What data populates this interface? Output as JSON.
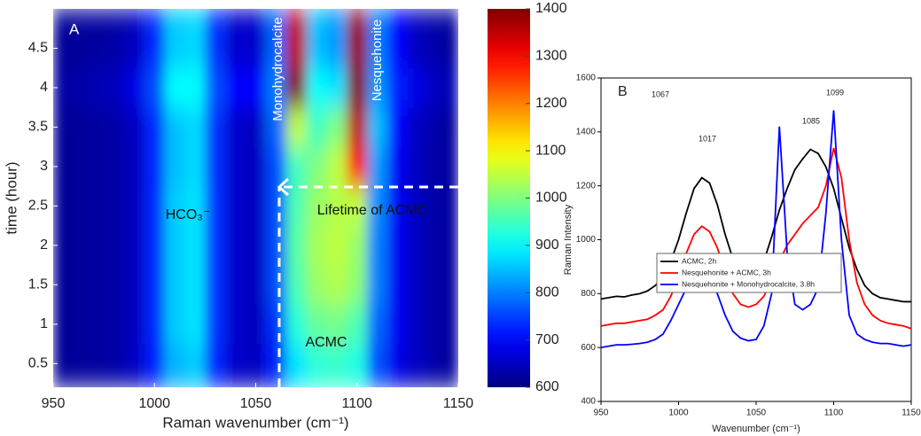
{
  "chart_data": [
    {
      "type": "heatmap",
      "panel_label": "A",
      "colormap": "jet",
      "x": [
        950,
        960,
        970,
        980,
        990,
        1000,
        1010,
        1020,
        1030,
        1040,
        1050,
        1060,
        1070,
        1080,
        1090,
        1100,
        1110,
        1120,
        1130,
        1140,
        1150
      ],
      "y": [
        0.5,
        1,
        1.5,
        2,
        2.5,
        3,
        3.5,
        4,
        4.5
      ],
      "values": [
        [
          620,
          620,
          625,
          630,
          650,
          720,
          840,
          860,
          730,
          660,
          650,
          720,
          880,
          930,
          940,
          920,
          760,
          680,
          650,
          630,
          620
        ],
        [
          620,
          620,
          625,
          630,
          650,
          730,
          860,
          880,
          740,
          660,
          650,
          740,
          930,
          980,
          990,
          960,
          780,
          690,
          650,
          630,
          620
        ],
        [
          620,
          620,
          625,
          630,
          650,
          730,
          860,
          880,
          740,
          660,
          650,
          760,
          960,
          1020,
          1040,
          1010,
          800,
          690,
          650,
          630,
          620
        ],
        [
          620,
          620,
          625,
          630,
          650,
          730,
          860,
          880,
          740,
          660,
          650,
          760,
          970,
          1030,
          1050,
          1020,
          800,
          690,
          650,
          630,
          620
        ],
        [
          620,
          620,
          625,
          630,
          650,
          730,
          860,
          880,
          740,
          660,
          650,
          760,
          960,
          1020,
          1040,
          1050,
          810,
          690,
          650,
          630,
          620
        ],
        [
          620,
          620,
          625,
          630,
          650,
          730,
          850,
          870,
          740,
          660,
          650,
          760,
          950,
          1000,
          1050,
          1300,
          820,
          690,
          650,
          630,
          620
        ],
        [
          620,
          620,
          625,
          630,
          650,
          730,
          850,
          870,
          740,
          660,
          650,
          780,
          1050,
          950,
          1000,
          1350,
          850,
          700,
          650,
          630,
          620
        ],
        [
          630,
          630,
          640,
          650,
          680,
          760,
          900,
          900,
          760,
          700,
          700,
          800,
          1400,
          900,
          880,
          1400,
          820,
          720,
          680,
          650,
          640
        ],
        [
          620,
          620,
          625,
          630,
          650,
          730,
          860,
          870,
          740,
          660,
          660,
          780,
          1350,
          850,
          820,
          1380,
          800,
          700,
          650,
          630,
          620
        ]
      ],
      "xlim": [
        950,
        1150
      ],
      "xticks": [
        950,
        1000,
        1050,
        1100,
        1150
      ],
      "ylim": [
        0.2,
        5.0
      ],
      "yticks": [
        0.5,
        1,
        1.5,
        2,
        2.5,
        3,
        3.5,
        4,
        4.5
      ],
      "xlabel": "Raman wavenumber (cm⁻¹)",
      "ylabel": "time (hour)",
      "colorbar": {
        "clim": [
          600,
          1400
        ],
        "ticks": [
          600,
          700,
          800,
          900,
          1000,
          1100,
          1200,
          1300,
          1400
        ]
      },
      "annotations": [
        "Monohydrocalcite",
        "Nesquehonite",
        "HCO₃⁻",
        "Lifetime of ACMC",
        "ACMC"
      ]
    },
    {
      "type": "line",
      "panel_label": "B",
      "x": [
        950,
        955,
        960,
        965,
        970,
        975,
        980,
        985,
        990,
        995,
        1000,
        1005,
        1010,
        1015,
        1020,
        1025,
        1030,
        1035,
        1040,
        1045,
        1050,
        1055,
        1060,
        1065,
        1070,
        1075,
        1080,
        1085,
        1090,
        1095,
        1100,
        1105,
        1110,
        1115,
        1120,
        1125,
        1130,
        1135,
        1140,
        1145,
        1150
      ],
      "series": [
        {
          "name": "ACMC, 2h",
          "color": "#000000",
          "values": [
            780,
            785,
            790,
            788,
            795,
            800,
            810,
            830,
            860,
            920,
            1000,
            1100,
            1190,
            1230,
            1210,
            1130,
            1020,
            930,
            870,
            850,
            860,
            920,
            1010,
            1110,
            1190,
            1260,
            1300,
            1335,
            1320,
            1270,
            1190,
            1080,
            970,
            890,
            830,
            800,
            785,
            780,
            775,
            770,
            770
          ]
        },
        {
          "name": "Nesquehonite + ACMC, 3h",
          "color": "#ff0000",
          "values": [
            680,
            685,
            690,
            690,
            695,
            700,
            705,
            720,
            740,
            790,
            860,
            950,
            1020,
            1050,
            1030,
            970,
            880,
            800,
            760,
            750,
            760,
            790,
            850,
            920,
            980,
            1020,
            1060,
            1090,
            1120,
            1200,
            1340,
            1230,
            1000,
            840,
            760,
            720,
            700,
            690,
            685,
            680,
            670
          ]
        },
        {
          "name": "Nesquehonite + Monohydrocalcite, 3.8h",
          "color": "#0000ff",
          "values": [
            600,
            605,
            610,
            610,
            612,
            615,
            620,
            630,
            650,
            700,
            760,
            820,
            860,
            880,
            860,
            800,
            720,
            660,
            635,
            625,
            630,
            680,
            800,
            1420,
            950,
            760,
            740,
            760,
            820,
            1100,
            1480,
            1000,
            720,
            650,
            630,
            620,
            615,
            615,
            610,
            605,
            610
          ]
        }
      ],
      "xlim": [
        950,
        1150
      ],
      "xticks": [
        950,
        1000,
        1050,
        1100,
        1150
      ],
      "ylim": [
        400,
        1600
      ],
      "yticks": [
        400,
        600,
        800,
        1000,
        1200,
        1400,
        1600
      ],
      "xlabel": "Wavenumber (cm⁻¹)",
      "ylabel": "Raman Intensity",
      "legend": "lower center",
      "annotations": [
        "1017",
        "1067",
        "1085",
        "1099"
      ]
    }
  ]
}
